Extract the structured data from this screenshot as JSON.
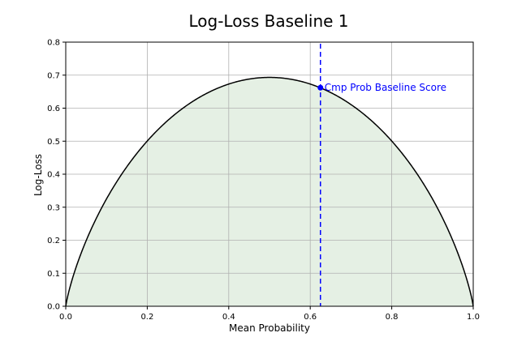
{
  "chart_data": {
    "type": "area",
    "title": "Log-Loss Baseline 1",
    "xlabel": "Mean Probability",
    "ylabel": "Log-Loss",
    "xlim": [
      0.0,
      1.0
    ],
    "ylim": [
      0.0,
      0.8
    ],
    "grid": true,
    "x_ticks": [
      0.0,
      0.2,
      0.4,
      0.6,
      0.8,
      1.0
    ],
    "x_tick_labels": [
      "0.0",
      "0.2",
      "0.4",
      "0.6",
      "0.8",
      "1.0"
    ],
    "y_ticks": [
      0.0,
      0.1,
      0.2,
      0.3,
      0.4,
      0.5,
      0.6,
      0.7,
      0.8
    ],
    "y_tick_labels": [
      "0.0",
      "0.1",
      "0.2",
      "0.3",
      "0.4",
      "0.5",
      "0.6",
      "0.7",
      "0.8"
    ],
    "series": [
      {
        "x": [
          0.0,
          0.02,
          0.05,
          0.1,
          0.15,
          0.2,
          0.25,
          0.3,
          0.35,
          0.4,
          0.45,
          0.5,
          0.55,
          0.6,
          0.65,
          0.7,
          0.75,
          0.8,
          0.85,
          0.9,
          0.95,
          0.98,
          1.0
        ],
        "y": [
          0.0,
          0.098,
          0.199,
          0.325,
          0.423,
          0.5,
          0.562,
          0.611,
          0.647,
          0.673,
          0.688,
          0.693,
          0.688,
          0.673,
          0.647,
          0.611,
          0.562,
          0.5,
          0.423,
          0.325,
          0.199,
          0.098,
          0.0
        ],
        "line_color": "#000000",
        "fill_color": "#e5f0e4"
      }
    ],
    "reference_line": {
      "x": 0.625,
      "color": "#0000ff",
      "style": "dashed"
    },
    "marker": {
      "x": 0.625,
      "y": 0.662,
      "color": "#0000ff"
    },
    "annotation": {
      "text": "Cmp Prob Baseline Score",
      "x": 0.625,
      "y": 0.662,
      "color": "#0000ff"
    }
  }
}
